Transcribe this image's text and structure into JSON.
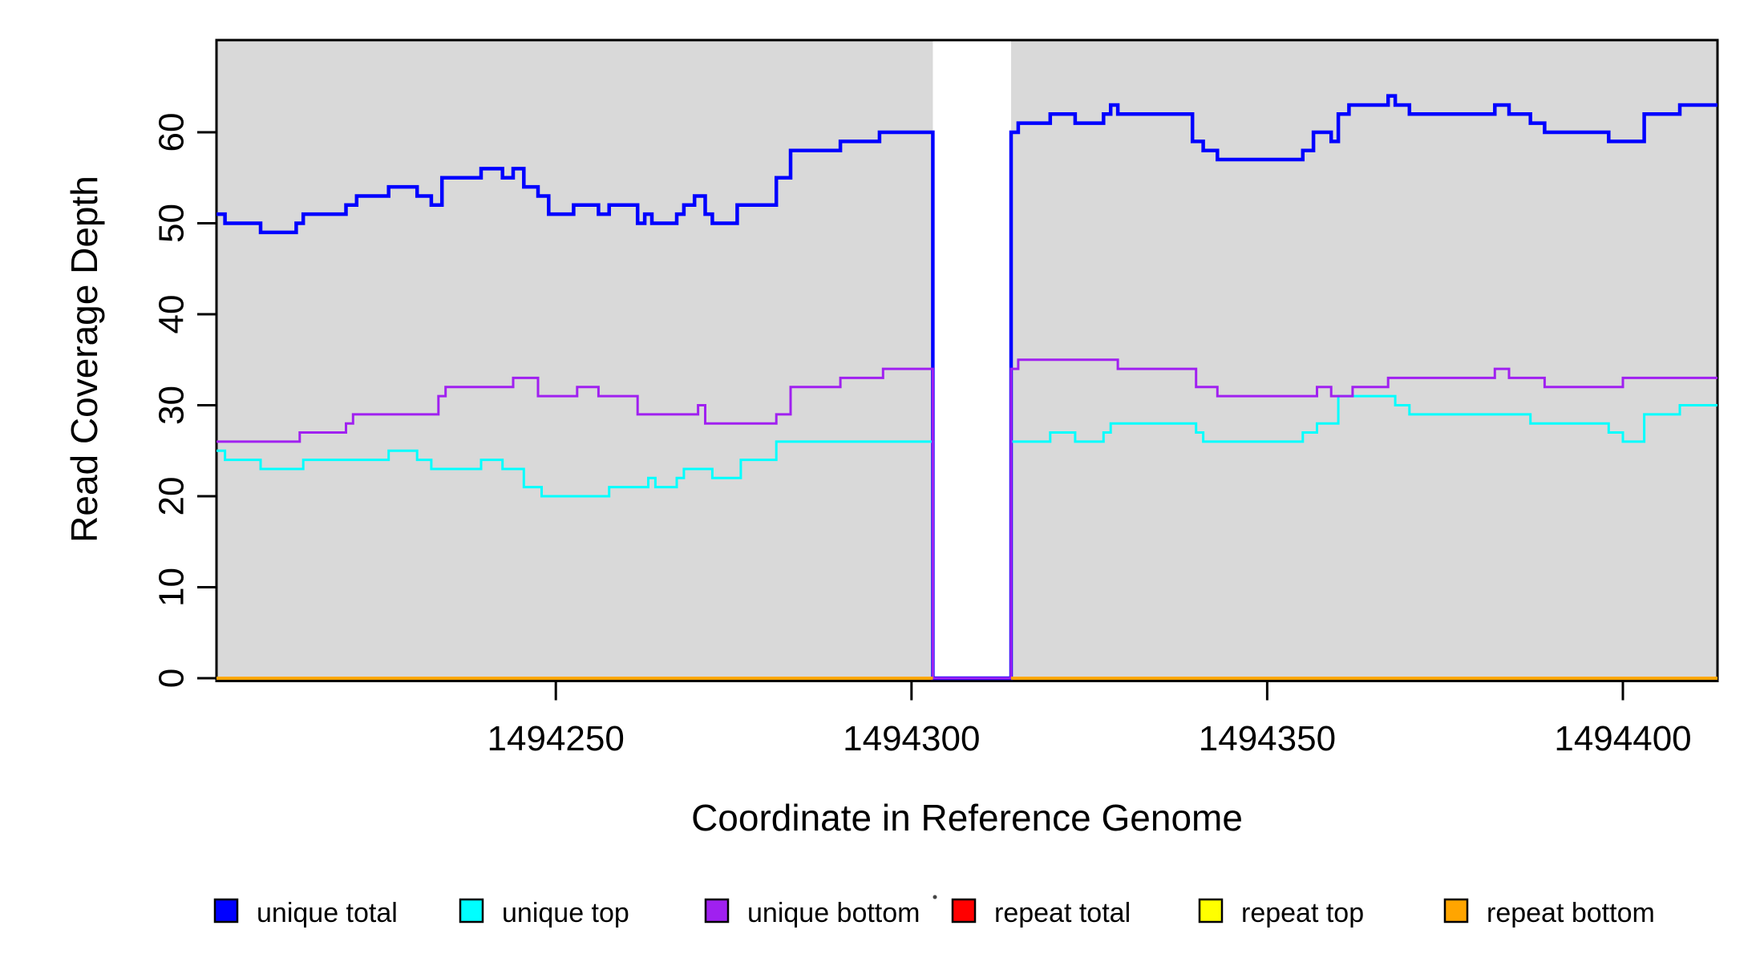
{
  "chart_data": {
    "type": "line",
    "subtype": "step",
    "title": "",
    "xlabel": "Coordinate in Reference Genome",
    "ylabel": "Read Coverage Depth",
    "x_ticks": [
      1494250,
      1494300,
      1494350,
      1494400
    ],
    "y_ticks": [
      0,
      10,
      20,
      30,
      40,
      50,
      60
    ],
    "xlim": [
      1494202.3,
      1494413.3
    ],
    "ylim": [
      0,
      70
    ],
    "grid": false,
    "plot_background": "#d9d9d9",
    "page_background": "#ffffff",
    "axis_color": "#000000",
    "uncovered_gap_x": [
      1494303,
      1494314
    ],
    "covered_regions": [
      [
        1494202.3,
        1494303
      ],
      [
        1494314,
        1494413.3
      ]
    ],
    "legend_position": "bottom",
    "legend": [
      {
        "label": "unique total",
        "color": "#0000ff"
      },
      {
        "label": "unique top",
        "color": "#00ffff"
      },
      {
        "label": "unique bottom",
        "color": "#a020f0"
      },
      {
        "label": "repeat total",
        "color": "#ff0000"
      },
      {
        "label": "repeat top",
        "color": "#ffff00"
      },
      {
        "label": "repeat bottom",
        "color": "#ffa500"
      }
    ],
    "series": [
      {
        "name": "unique total",
        "color": "#0000ff",
        "line_width": 4.5,
        "steps": [
          [
            1494202.3,
            51
          ],
          [
            1494203.5,
            50
          ],
          [
            1494208.5,
            49
          ],
          [
            1494213.5,
            50
          ],
          [
            1494214.5,
            51
          ],
          [
            1494220.5,
            52
          ],
          [
            1494222,
            53
          ],
          [
            1494226.5,
            54
          ],
          [
            1494230.5,
            53
          ],
          [
            1494232.5,
            52
          ],
          [
            1494234,
            55
          ],
          [
            1494239.5,
            56
          ],
          [
            1494242.5,
            55
          ],
          [
            1494244,
            56
          ],
          [
            1494245.5,
            54
          ],
          [
            1494247.5,
            53
          ],
          [
            1494249,
            51
          ],
          [
            1494252.5,
            52
          ],
          [
            1494256,
            51
          ],
          [
            1494257.5,
            52
          ],
          [
            1494261.5,
            50
          ],
          [
            1494262.5,
            51
          ],
          [
            1494263.5,
            50
          ],
          [
            1494267,
            51
          ],
          [
            1494268,
            52
          ],
          [
            1494269.5,
            53
          ],
          [
            1494271,
            51
          ],
          [
            1494272,
            50
          ],
          [
            1494275.5,
            52
          ],
          [
            1494281,
            55
          ],
          [
            1494283,
            58
          ],
          [
            1494290,
            59
          ],
          [
            1494295.5,
            60
          ],
          [
            1494303,
            0
          ],
          [
            1494314,
            60
          ],
          [
            1494315,
            61
          ],
          [
            1494319.5,
            62
          ],
          [
            1494323,
            61
          ],
          [
            1494327,
            62
          ],
          [
            1494328,
            63
          ],
          [
            1494329,
            62
          ],
          [
            1494339.5,
            59
          ],
          [
            1494341,
            58
          ],
          [
            1494343,
            57
          ],
          [
            1494355,
            58
          ],
          [
            1494356.5,
            60
          ],
          [
            1494359,
            59
          ],
          [
            1494360,
            62
          ],
          [
            1494361.5,
            63
          ],
          [
            1494367,
            64
          ],
          [
            1494368,
            63
          ],
          [
            1494370,
            62
          ],
          [
            1494382,
            63
          ],
          [
            1494384,
            62
          ],
          [
            1494387,
            61
          ],
          [
            1494389,
            60
          ],
          [
            1494398,
            59
          ],
          [
            1494403,
            62
          ],
          [
            1494408,
            63
          ]
        ]
      },
      {
        "name": "unique top",
        "color": "#00ffff",
        "line_width": 3,
        "steps": [
          [
            1494202.3,
            25
          ],
          [
            1494203.5,
            24
          ],
          [
            1494208.5,
            23
          ],
          [
            1494214.5,
            24
          ],
          [
            1494226.5,
            25
          ],
          [
            1494230.5,
            24
          ],
          [
            1494232.5,
            23
          ],
          [
            1494239.5,
            24
          ],
          [
            1494242.5,
            23
          ],
          [
            1494245.5,
            21
          ],
          [
            1494248,
            20
          ],
          [
            1494257.5,
            21
          ],
          [
            1494263,
            22
          ],
          [
            1494264,
            21
          ],
          [
            1494267,
            22
          ],
          [
            1494268,
            23
          ],
          [
            1494272,
            22
          ],
          [
            1494276,
            24
          ],
          [
            1494281,
            26
          ],
          [
            1494303,
            0
          ],
          [
            1494314,
            26
          ],
          [
            1494319.5,
            27
          ],
          [
            1494323,
            26
          ],
          [
            1494327,
            27
          ],
          [
            1494328,
            28
          ],
          [
            1494340,
            27
          ],
          [
            1494341,
            26
          ],
          [
            1494355,
            27
          ],
          [
            1494357,
            28
          ],
          [
            1494360,
            31
          ],
          [
            1494368,
            30
          ],
          [
            1494370,
            29
          ],
          [
            1494387,
            28
          ],
          [
            1494398,
            27
          ],
          [
            1494400,
            26
          ],
          [
            1494403,
            29
          ],
          [
            1494408,
            30
          ]
        ]
      },
      {
        "name": "unique bottom",
        "color": "#a020f0",
        "line_width": 3,
        "steps": [
          [
            1494202.3,
            26
          ],
          [
            1494214,
            27
          ],
          [
            1494220.5,
            28
          ],
          [
            1494221.5,
            29
          ],
          [
            1494233.5,
            31
          ],
          [
            1494234.5,
            32
          ],
          [
            1494244,
            33
          ],
          [
            1494247.5,
            31
          ],
          [
            1494253,
            32
          ],
          [
            1494256,
            31
          ],
          [
            1494261.5,
            29
          ],
          [
            1494270,
            30
          ],
          [
            1494271,
            28
          ],
          [
            1494281,
            29
          ],
          [
            1494283,
            32
          ],
          [
            1494290,
            33
          ],
          [
            1494296,
            34
          ],
          [
            1494303,
            0
          ],
          [
            1494314,
            34
          ],
          [
            1494315,
            35
          ],
          [
            1494329,
            34
          ],
          [
            1494340,
            32
          ],
          [
            1494343,
            31
          ],
          [
            1494357,
            32
          ],
          [
            1494359,
            31
          ],
          [
            1494362,
            32
          ],
          [
            1494367,
            33
          ],
          [
            1494382,
            34
          ],
          [
            1494384,
            33
          ],
          [
            1494389,
            32
          ],
          [
            1494400,
            33
          ]
        ]
      },
      {
        "name": "repeat total",
        "color": "#ff0000",
        "line_width": 3.5,
        "steps": [
          [
            1494202.3,
            0
          ],
          [
            1494303,
            null
          ],
          [
            1494314,
            0
          ]
        ]
      },
      {
        "name": "repeat top",
        "color": "#ffff00",
        "line_width": 3.5,
        "steps": [
          [
            1494202.3,
            0
          ],
          [
            1494303,
            null
          ],
          [
            1494314,
            0
          ]
        ]
      },
      {
        "name": "repeat bottom",
        "color": "#ffa500",
        "line_width": 3.5,
        "steps": [
          [
            1494202.3,
            0
          ],
          [
            1494303,
            null
          ],
          [
            1494314,
            0
          ]
        ]
      }
    ]
  }
}
